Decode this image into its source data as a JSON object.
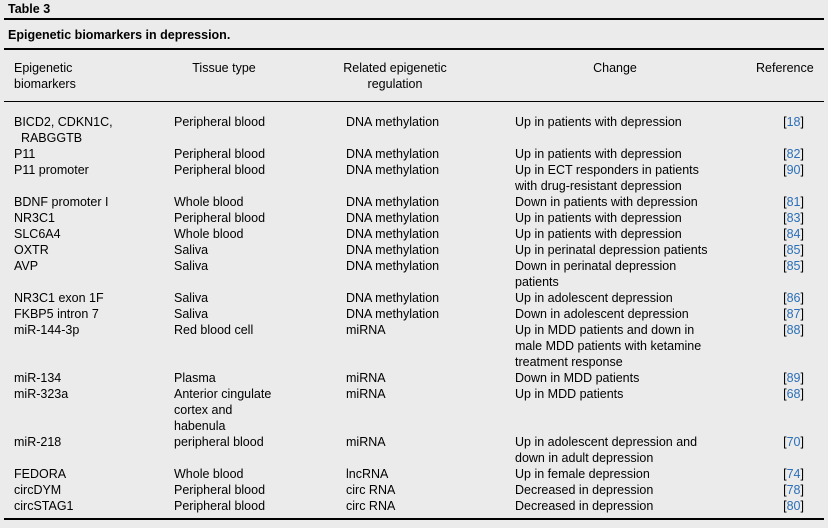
{
  "table_label": "Table 3",
  "caption": "Epigenetic biomarkers in depression.",
  "headers": {
    "biomarker_line1": "Epigenetic",
    "biomarker_line2": "biomarkers",
    "tissue": "Tissue type",
    "regulation_line1": "Related epigenetic",
    "regulation_line2": "regulation",
    "change": "Change",
    "reference": "Reference"
  },
  "rows": [
    {
      "biomarker": "BICD2, CDKN1C,\n  RABGGTB",
      "tissue": "Peripheral blood",
      "regulation": "DNA methylation",
      "change": "Up in patients with depression",
      "ref": "18"
    },
    {
      "biomarker": "P11",
      "tissue": "Peripheral blood",
      "regulation": "DNA methylation",
      "change": "Up in patients with depression",
      "ref": "82"
    },
    {
      "biomarker": "P11 promoter",
      "tissue": "Peripheral blood",
      "regulation": "DNA methylation",
      "change": "Up in ECT responders in patients\nwith drug-resistant depression",
      "ref": "90"
    },
    {
      "biomarker": "BDNF promoter I",
      "tissue": "Whole blood",
      "regulation": "DNA methylation",
      "change": "Down in patients with depression",
      "ref": "81"
    },
    {
      "biomarker": "NR3C1",
      "tissue": "Peripheral blood",
      "regulation": "DNA methylation",
      "change": "Up in patients with depression",
      "ref": "83"
    },
    {
      "biomarker": "SLC6A4",
      "tissue": "Whole blood",
      "regulation": "DNA methylation",
      "change": "Up in patients with depression",
      "ref": "84"
    },
    {
      "biomarker": "OXTR",
      "tissue": "Saliva",
      "regulation": "DNA methylation",
      "change": "Up in perinatal depression patients",
      "ref": "85"
    },
    {
      "biomarker": "AVP",
      "tissue": "Saliva",
      "regulation": "DNA methylation",
      "change": "Down in perinatal depression\npatients",
      "ref": "85"
    },
    {
      "biomarker": "NR3C1 exon 1F",
      "tissue": "Saliva",
      "regulation": "DNA methylation",
      "change": "Up in adolescent depression",
      "ref": "86"
    },
    {
      "biomarker": "FKBP5 intron 7",
      "tissue": "Saliva",
      "regulation": "DNA methylation",
      "change": "Down in adolescent depression",
      "ref": "87"
    },
    {
      "biomarker": "miR-144-3p",
      "tissue": "Red blood cell",
      "regulation": "miRNA",
      "change": "Up in MDD patients and down in\nmale MDD patients with ketamine\ntreatment response",
      "ref": "88"
    },
    {
      "biomarker": "miR-134",
      "tissue": "Plasma",
      "regulation": "miRNA",
      "change": "Down in MDD patients",
      "ref": "89"
    },
    {
      "biomarker": "miR-323a",
      "tissue": "Anterior cingulate\ncortex and\nhabenula",
      "regulation": "miRNA",
      "change": "Up in MDD patients",
      "ref": "68"
    },
    {
      "biomarker": "miR-218",
      "tissue": "peripheral blood",
      "regulation": "miRNA",
      "change": "Up in adolescent depression and\ndown in adult depression",
      "ref": "70"
    },
    {
      "biomarker": "FEDORA",
      "tissue": "Whole blood",
      "regulation": "lncRNA",
      "change": "Up in female depression",
      "ref": "74"
    },
    {
      "biomarker": "circDYM",
      "tissue": "Peripheral blood",
      "regulation": "circ RNA",
      "change": "Decreased in depression",
      "ref": "78"
    },
    {
      "biomarker": "circSTAG1",
      "tissue": "Peripheral blood",
      "regulation": "circ RNA",
      "change": "Decreased in depression",
      "ref": "80"
    }
  ]
}
